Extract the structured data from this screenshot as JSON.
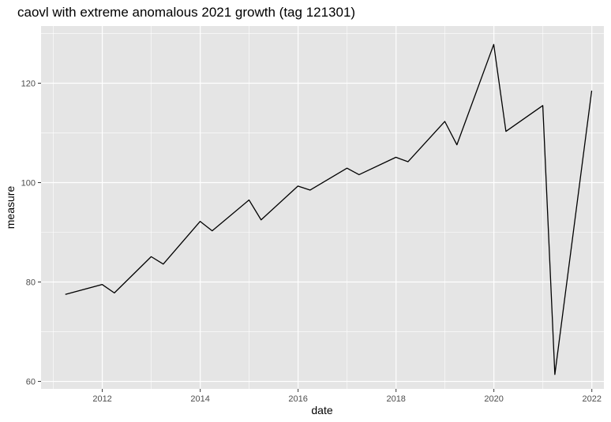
{
  "chart_data": {
    "type": "line",
    "title": "caovl with extreme anomalous 2021 growth (tag 121301)",
    "xlabel": "date",
    "ylabel": "measure",
    "xlim": [
      "2010-10-01",
      "2022-04-01"
    ],
    "ylim": [
      58.5,
      131.5
    ],
    "x_ticks": [
      {
        "label": "2012",
        "date": "2012-01-01"
      },
      {
        "label": "2014",
        "date": "2014-01-01"
      },
      {
        "label": "2016",
        "date": "2016-01-01"
      },
      {
        "label": "2018",
        "date": "2018-01-01"
      },
      {
        "label": "2020",
        "date": "2020-01-01"
      },
      {
        "label": "2022",
        "date": "2022-01-01"
      }
    ],
    "y_ticks": [
      60,
      80,
      100,
      120
    ],
    "grid": true,
    "colors": {
      "panel": "#e5e5e5",
      "grid": "#ffffff",
      "line": "#000000"
    },
    "series": [
      {
        "x": [
          "2011-03-31",
          "2011-12-31",
          "2012-03-31",
          "2012-12-31",
          "2013-03-31",
          "2013-12-31",
          "2014-03-31",
          "2014-12-31",
          "2015-03-31",
          "2015-12-31",
          "2016-03-31",
          "2016-12-31",
          "2017-03-31",
          "2017-12-31",
          "2018-03-31",
          "2018-12-31",
          "2019-03-31",
          "2019-12-31",
          "2020-03-31",
          "2020-12-31",
          "2021-03-31",
          "2021-12-31"
        ],
        "values": [
          77.5,
          79.5,
          77.8,
          85.1,
          83.6,
          92.2,
          90.3,
          96.5,
          92.5,
          99.3,
          98.5,
          102.9,
          101.6,
          105.1,
          104.2,
          112.3,
          107.6,
          127.8,
          110.3,
          115.5,
          61.4,
          118.5
        ]
      }
    ]
  }
}
